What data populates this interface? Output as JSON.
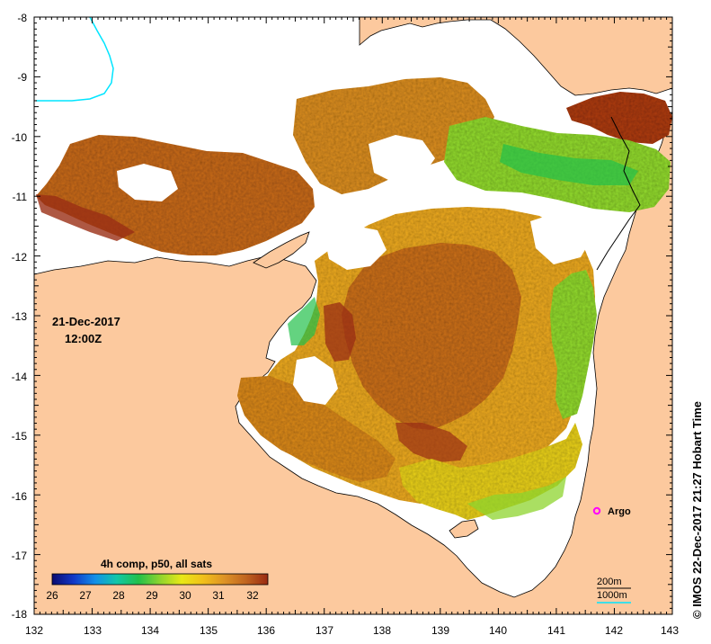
{
  "map": {
    "date_line": "21-Dec-2017",
    "time_line": "12:00Z",
    "x_ticks": [
      "132",
      "133",
      "134",
      "135",
      "136",
      "137",
      "138",
      "139",
      "140",
      "141",
      "142",
      "143"
    ],
    "y_ticks": [
      "-8",
      "-9",
      "-10",
      "-11",
      "-12",
      "-13",
      "-14",
      "-15",
      "-16",
      "-17",
      "-18"
    ],
    "argo_label": "Argo",
    "scale_labels": [
      "200m",
      "1000m"
    ],
    "colorbar": {
      "title": "4h comp, p50, all sats",
      "ticks": [
        "26",
        "27",
        "28",
        "29",
        "30",
        "31",
        "32"
      ],
      "colors": [
        "#0b0b70",
        "#1239c8",
        "#1390e8",
        "#12c7a8",
        "#22c04a",
        "#8ed42e",
        "#e8e818",
        "#f1c01a",
        "#dd9226",
        "#c0641f",
        "#9a2a12"
      ]
    },
    "credit": "© IMOS 22-Dec-2017 21:27 Hobart Time",
    "colors": {
      "land": "#fcc99e",
      "background": "#ffffff",
      "argo": "#ff00ff",
      "contour_200": "#00e5ff",
      "contour_1000": "#00e5ff"
    }
  }
}
